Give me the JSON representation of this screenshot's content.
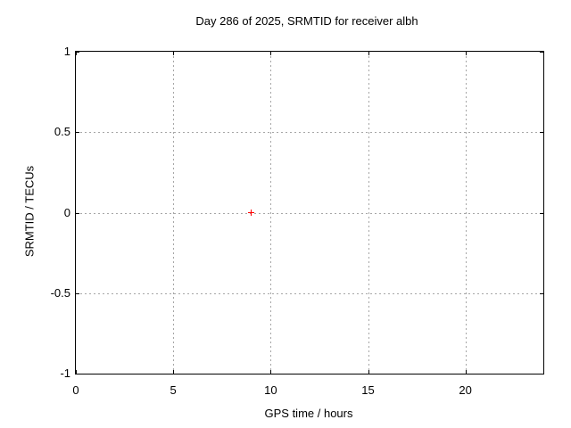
{
  "chart_data": {
    "type": "scatter",
    "title": "Day 286 of 2025, SRMTID for receiver albh",
    "xlabel": "GPS time / hours",
    "ylabel": "SRMTID / TECUs",
    "xlim": [
      0,
      24
    ],
    "ylim": [
      -1,
      1
    ],
    "grid": true,
    "legend": false,
    "xticks": [
      {
        "value": 0,
        "label": "0"
      },
      {
        "value": 5,
        "label": "5"
      },
      {
        "value": 10,
        "label": "10"
      },
      {
        "value": 15,
        "label": "15"
      },
      {
        "value": 20,
        "label": "20"
      }
    ],
    "yticks": [
      {
        "value": -1,
        "label": "-1"
      },
      {
        "value": -0.5,
        "label": "-0.5"
      },
      {
        "value": 0,
        "label": "0"
      },
      {
        "value": 0.5,
        "label": "0.5"
      },
      {
        "value": 1,
        "label": "1"
      }
    ],
    "series": [
      {
        "marker": "plus",
        "color": "#ff0000",
        "points": [
          [
            9,
            0
          ]
        ]
      }
    ],
    "colors": {
      "background": "#ffffff",
      "axis": "#000000",
      "grid": "#a6a6a6",
      "text": "#000000"
    }
  }
}
